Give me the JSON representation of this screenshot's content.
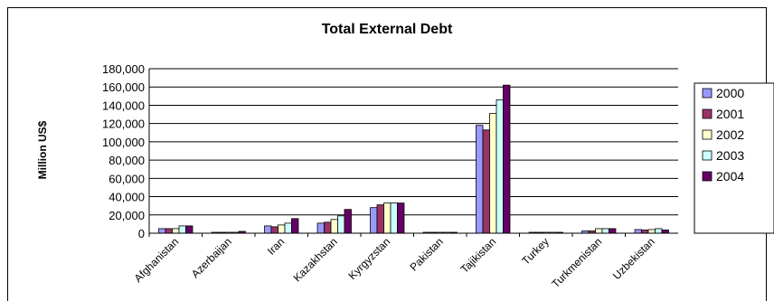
{
  "chart_data": {
    "type": "bar",
    "title": "Total External Debt",
    "ylabel": "Million US$",
    "xlabel": "",
    "ylim": [
      0,
      180000
    ],
    "y_ticks": [
      "0",
      "20,000",
      "40,000",
      "60,000",
      "80,000",
      "100,000",
      "120,000",
      "140,000",
      "160,000",
      "180,000"
    ],
    "grid": true,
    "legend_position": "right",
    "categories": [
      "Afghanistan",
      "Azerbaijan",
      "Iran",
      "Kazakhstan",
      "Kyrgyzstan",
      "Pakistan",
      "Tajikistan",
      "Turkey",
      "Turkmenistan",
      "Uzbekistan"
    ],
    "series": [
      {
        "name": "2000",
        "color": "#9999FF",
        "values": [
          5000,
          1000,
          8000,
          11000,
          28000,
          1000,
          118000,
          1000,
          2500,
          4000
        ]
      },
      {
        "name": "2001",
        "color": "#993366",
        "values": [
          5000,
          1000,
          7000,
          12000,
          31000,
          1000,
          113000,
          1000,
          2500,
          3500
        ]
      },
      {
        "name": "2002",
        "color": "#FFFFCC",
        "values": [
          5000,
          1000,
          9000,
          15000,
          33000,
          1000,
          131000,
          1000,
          5000,
          4000
        ]
      },
      {
        "name": "2003",
        "color": "#CCFFFF",
        "values": [
          8000,
          1000,
          11000,
          19000,
          33000,
          1000,
          146000,
          1000,
          5000,
          5000
        ]
      },
      {
        "name": "2004",
        "color": "#660066",
        "values": [
          8000,
          2000,
          16000,
          26000,
          33000,
          1000,
          162000,
          1000,
          5000,
          3500
        ]
      }
    ]
  }
}
